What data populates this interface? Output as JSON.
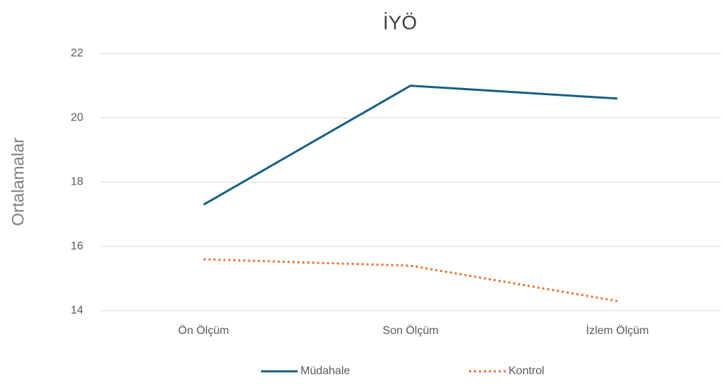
{
  "chart_data": {
    "type": "line",
    "title": "İYÖ",
    "y_label": "Ortalamalar",
    "categories": [
      "Ön Ölçüm",
      "Son Ölçüm",
      "İzlem Ölçüm"
    ],
    "series": [
      {
        "name": "Müdahale",
        "color": "#156082",
        "dash": "solid",
        "values": [
          17.3,
          21.0,
          20.6
        ]
      },
      {
        "name": "Kontrol",
        "color": "#e97132",
        "dash": "dotted",
        "values": [
          15.6,
          15.4,
          14.3
        ]
      }
    ],
    "ylim": [
      14,
      22
    ],
    "yticks": [
      14,
      16,
      18,
      20,
      22
    ],
    "grid": true,
    "legend": "bottom"
  }
}
